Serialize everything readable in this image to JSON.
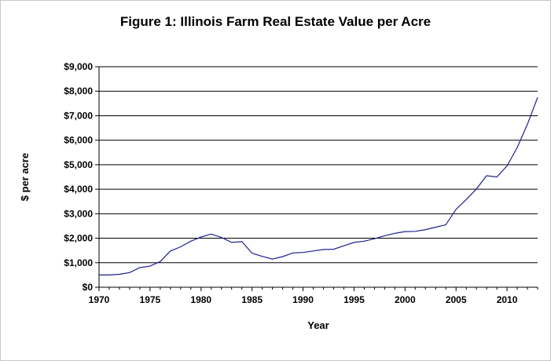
{
  "chart_data": {
    "type": "line",
    "title": "Figure 1: Illinois Farm Real Estate Value per Acre",
    "xlabel": "Year",
    "ylabel": "$ per acre",
    "xlim": [
      1970,
      2013
    ],
    "ylim": [
      0,
      9000
    ],
    "x_ticks": [
      1970,
      1975,
      1980,
      1985,
      1990,
      1995,
      2000,
      2005,
      2010
    ],
    "x_tick_labels": [
      "1970",
      "1975",
      "1980",
      "1985",
      "1990",
      "1995",
      "2000",
      "2005",
      "2010"
    ],
    "y_ticks": [
      0,
      1000,
      2000,
      3000,
      4000,
      5000,
      6000,
      7000,
      8000,
      9000
    ],
    "y_tick_labels": [
      "$0",
      "$1,000",
      "$2,000",
      "$3,000",
      "$4,000",
      "$5,000",
      "$6,000",
      "$7,000",
      "$8,000",
      "$9,000"
    ],
    "grid": "horizontal",
    "line_color": "#1f1f8f",
    "series": [
      {
        "x": [
          1970,
          1971,
          1972,
          1973,
          1974,
          1975,
          1976,
          1977,
          1978,
          1979,
          1980,
          1981,
          1982,
          1983,
          1984,
          1985,
          1986,
          1987,
          1988,
          1989,
          1990,
          1991,
          1992,
          1993,
          1994,
          1995,
          1996,
          1997,
          1998,
          1999,
          2000,
          2001,
          2002,
          2003,
          2004,
          2005,
          2006,
          2007,
          2008,
          2009,
          2010,
          2011,
          2012,
          2013
        ],
        "values": [
          500,
          500,
          530,
          600,
          800,
          860,
          1050,
          1480,
          1650,
          1880,
          2050,
          2170,
          2030,
          1830,
          1860,
          1390,
          1260,
          1150,
          1250,
          1400,
          1420,
          1480,
          1540,
          1550,
          1690,
          1830,
          1880,
          1980,
          2100,
          2200,
          2270,
          2280,
          2350,
          2450,
          2550,
          3180,
          3580,
          4010,
          4550,
          4500,
          4950,
          5700,
          6650,
          7750
        ]
      }
    ]
  }
}
